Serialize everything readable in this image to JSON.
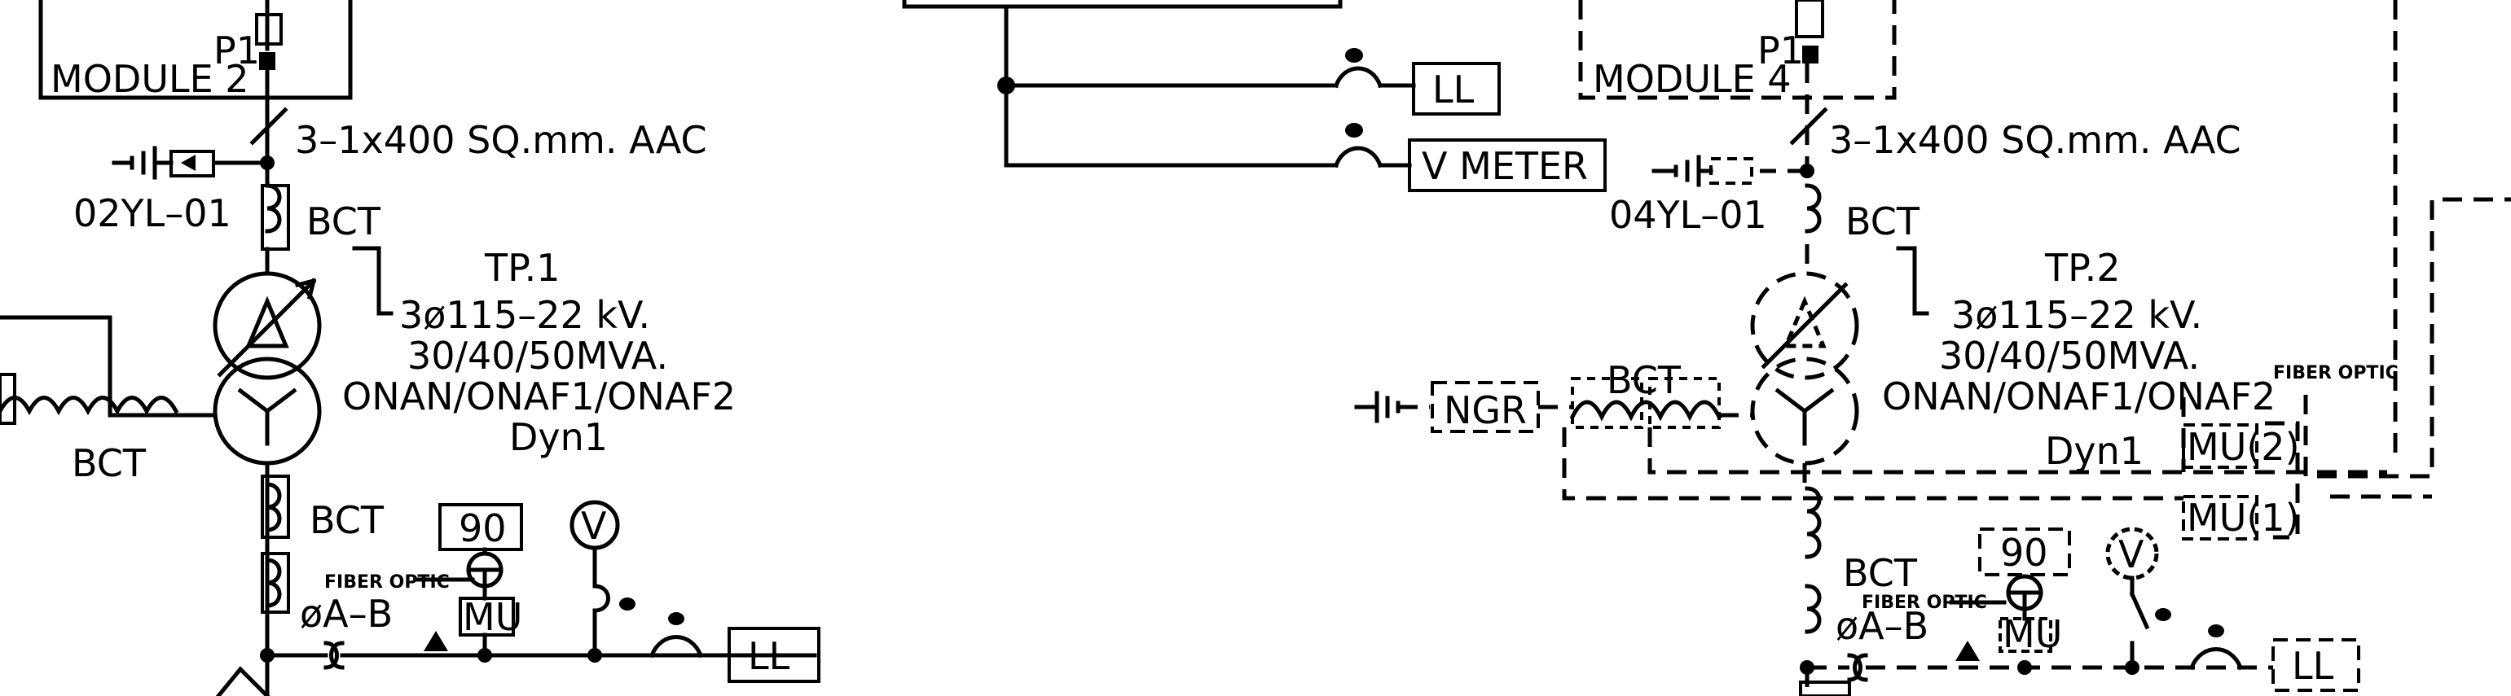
{
  "left_bay": {
    "p1": "P1",
    "module": "MODULE 2",
    "cable": "3–1x400 SQ.mm. AAC",
    "equipment_id": "02YL–01",
    "bct_top": "BCT",
    "bct_neutral": "BCT",
    "bct_bottom": "BCT",
    "transformer": {
      "name": "TP.1",
      "voltage": "3ø115–22 kV.",
      "rating": "30/40/50MVA.",
      "cooling": "ONAN/ONAF1/ONAF2",
      "vector_group": "Dyn1"
    },
    "phase": "øA–B",
    "relay": "90",
    "fiber_optic": "FIBER OPTIC",
    "merging_unit": "MU",
    "voltmeter": "V",
    "ll": "LL"
  },
  "middle": {
    "ll": "LL",
    "v_meter": "V METER"
  },
  "right_bay": {
    "p1": "P1",
    "module": "MODULE 4",
    "cable": "3–1x400 SQ.mm. AAC",
    "equipment_id": "04YL–01",
    "bct_top": "BCT",
    "bct_neutral": "BCT",
    "bct_bottom": "BCT",
    "ngr": "NGR",
    "transformer": {
      "name": "TP.2",
      "voltage": "3ø115–22 kV.",
      "rating": "30/40/50MVA.",
      "cooling": "ONAN/ONAF1/ONAF2",
      "vector_group": "Dyn1"
    },
    "fiber_optic_top": "FIBER OPTIC",
    "mu2": "MU(2)",
    "mu1": "MU(1)",
    "phase": "øA–B",
    "relay": "90",
    "fiber_optic": "FIBER OPTIC",
    "merging_unit": "MU",
    "voltmeter": "V",
    "ll": "LL"
  }
}
